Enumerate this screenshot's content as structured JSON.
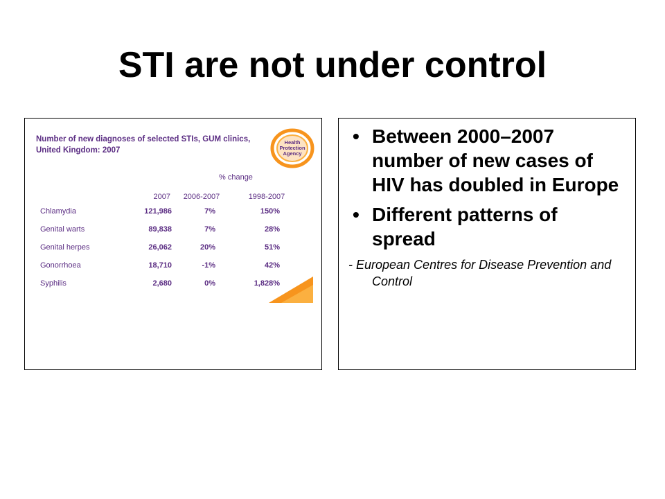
{
  "slide": {
    "title": "STI are not under control"
  },
  "table_panel": {
    "heading": "Number of new diagnoses of selected STIs, GUM clinics, United Kingdom: 2007",
    "logo_line1": "Health",
    "logo_line2": "Protection",
    "logo_line3": "Agency",
    "pct_change_label": "% change",
    "column_headers": [
      "2007",
      "2006-2007",
      "1998-2007"
    ],
    "rows": [
      {
        "label": "Chlamydia",
        "count": "121,986",
        "change_1y": "7%",
        "change_10y": "150%"
      },
      {
        "label": "Genital warts",
        "count": "89,838",
        "change_1y": "7%",
        "change_10y": "28%"
      },
      {
        "label": "Genital herpes",
        "count": "26,062",
        "change_1y": "20%",
        "change_10y": "51%"
      },
      {
        "label": "Gonorrhoea",
        "count": "18,710",
        "change_1y": "-1%",
        "change_10y": "42%"
      },
      {
        "label": "Syphilis",
        "count": "2,680",
        "change_1y": "0%",
        "change_10y": "1,828%"
      }
    ],
    "colors": {
      "text": "#5b2d83",
      "accent": "#f7941d"
    }
  },
  "text_panel": {
    "bullet_glyph": "•",
    "bullets": [
      "Between 2000–2007 number of new cases of HIV has doubled in Europe",
      "Different patterns of spread"
    ],
    "attribution": "- European Centres for Disease Prevention and Control"
  }
}
